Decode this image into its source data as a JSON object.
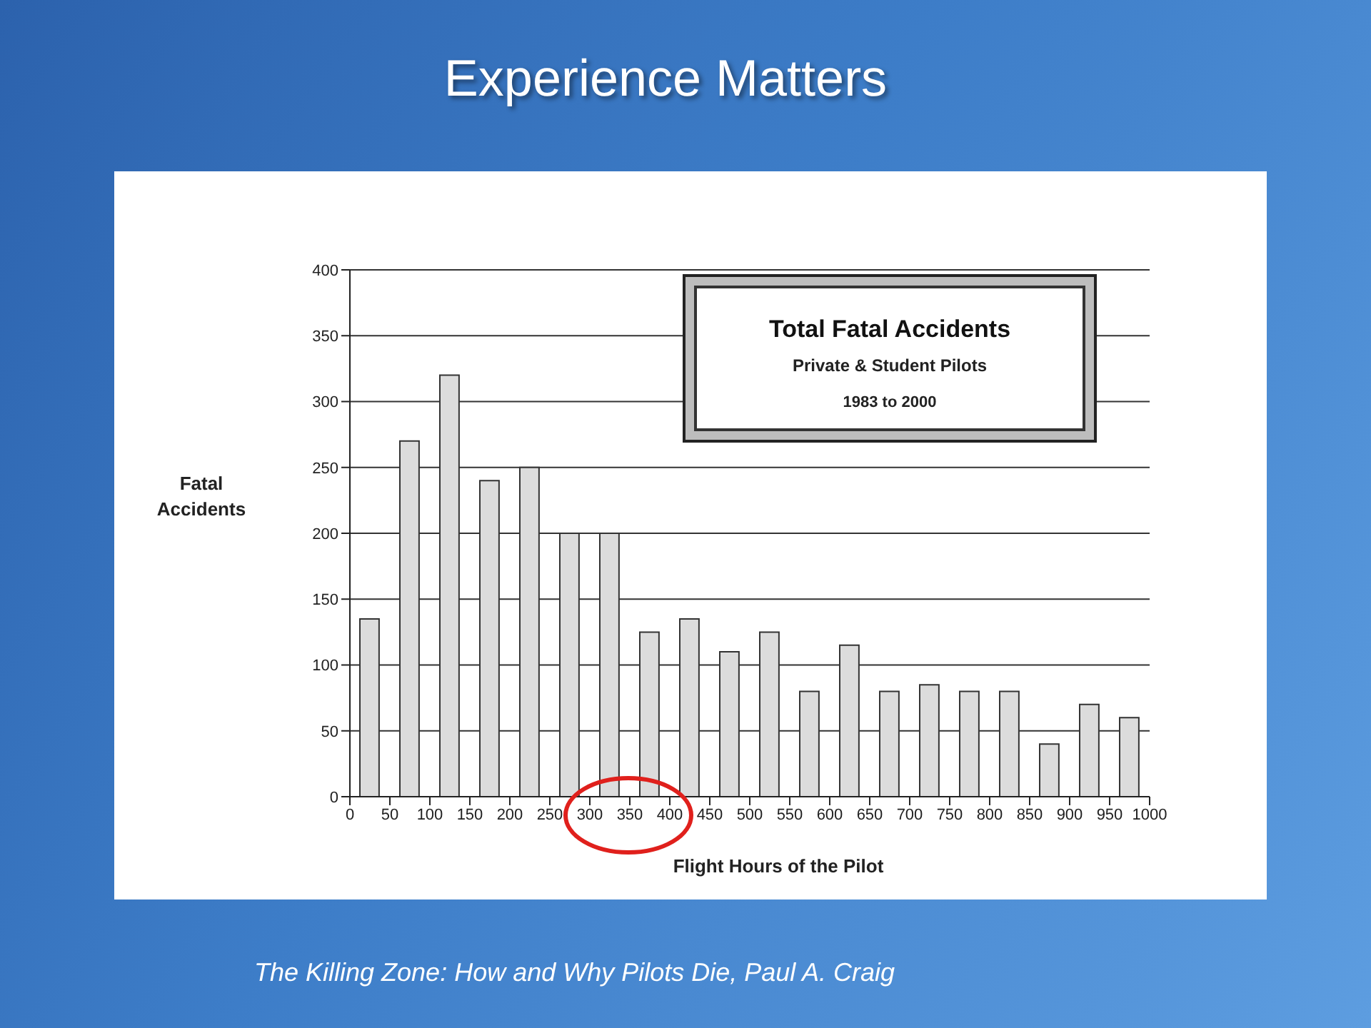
{
  "chart_data": {
    "type": "histogram",
    "title": "Experience Matters",
    "subtitle": "Total Fatal Accidents",
    "xlabel": "Flight Hours of the Pilot",
    "ylabel": "Fatal Accidents",
    "annotations": [
      "Private & Student Pilots",
      "1983 to 2000",
      "The Killing Zone: How and Why Pilots Die, Paul A. Craig"
    ],
    "bins": [
      0,
      50,
      100,
      150,
      200,
      250,
      300,
      350,
      400,
      450,
      500,
      550,
      600,
      650,
      700,
      750,
      800,
      850,
      900,
      950,
      1000
    ],
    "values": [
      135,
      270,
      320,
      240,
      250,
      200,
      200,
      125,
      135,
      110,
      125,
      80,
      115,
      80,
      85,
      80,
      80,
      40,
      70,
      60
    ],
    "color": "#dcdcdc",
    "xlim": [
      0,
      1000
    ],
    "xticks": [
      0,
      50,
      100,
      150,
      200,
      250,
      300,
      350,
      400,
      450,
      500,
      550,
      600,
      650,
      700,
      750,
      800,
      850,
      900,
      950,
      1000
    ],
    "ylim": [
      0,
      400
    ],
    "yticks": [
      0,
      50,
      100,
      150,
      200,
      250,
      300,
      350,
      400
    ],
    "grid": "y"
  }
}
